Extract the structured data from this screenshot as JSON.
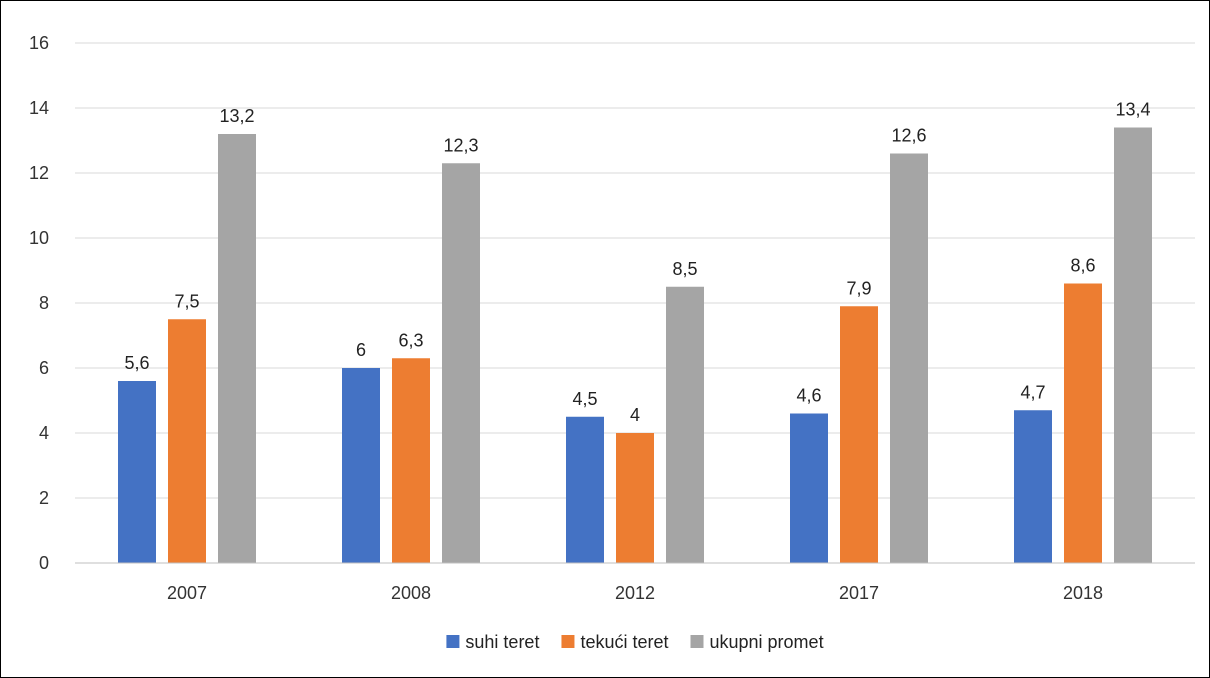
{
  "chart_data": {
    "type": "bar",
    "categories": [
      "2007",
      "2008",
      "2012",
      "2017",
      "2018"
    ],
    "series": [
      {
        "name": "suhi teret",
        "values": [
          5.6,
          6,
          4.5,
          4.6,
          4.7
        ],
        "labels": [
          "5,6",
          "6",
          "4,5",
          "4,6",
          "4,7"
        ],
        "color": "#4472C4"
      },
      {
        "name": "tekući teret",
        "values": [
          7.5,
          6.3,
          4,
          7.9,
          8.6
        ],
        "labels": [
          "7,5",
          "6,3",
          "4",
          "7,9",
          "8,6"
        ],
        "color": "#ED7D31"
      },
      {
        "name": "ukupni promet",
        "values": [
          13.2,
          12.3,
          8.5,
          12.6,
          13.4
        ],
        "labels": [
          "13,2",
          "12,3",
          "8,5",
          "12,6",
          "13,4"
        ],
        "color": "#A5A5A5"
      }
    ],
    "y_ticks": [
      "0",
      "2",
      "4",
      "6",
      "8",
      "10",
      "12",
      "14",
      "16"
    ],
    "y_tick_values": [
      0,
      2,
      4,
      6,
      8,
      10,
      12,
      14,
      16
    ],
    "ylim": [
      0,
      16
    ],
    "title": "",
    "xlabel": "",
    "ylabel": "",
    "grid": true,
    "gridline_color": "#D9D9D9",
    "legend_position": "bottom"
  }
}
